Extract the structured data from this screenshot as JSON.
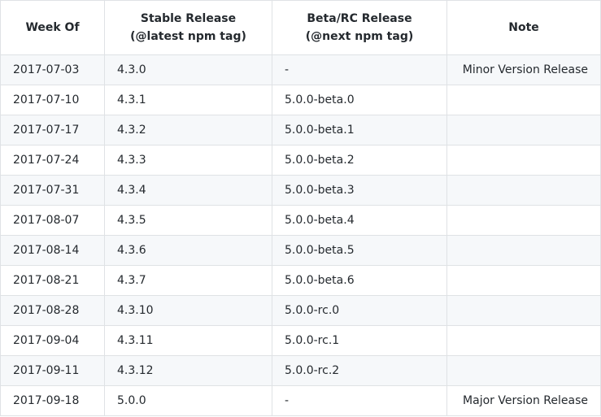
{
  "table": {
    "headers": [
      [
        "Week Of"
      ],
      [
        "Stable Release",
        "(@latest npm tag)"
      ],
      [
        "Beta/RC Release",
        "(@next npm tag)"
      ],
      [
        "Note"
      ]
    ],
    "rows": [
      [
        "2017-07-03",
        "4.3.0",
        "-",
        "Minor Version Release"
      ],
      [
        "2017-07-10",
        "4.3.1",
        "5.0.0-beta.0",
        ""
      ],
      [
        "2017-07-17",
        "4.3.2",
        "5.0.0-beta.1",
        ""
      ],
      [
        "2017-07-24",
        "4.3.3",
        "5.0.0-beta.2",
        ""
      ],
      [
        "2017-07-31",
        "4.3.4",
        "5.0.0-beta.3",
        ""
      ],
      [
        "2017-08-07",
        "4.3.5",
        "5.0.0-beta.4",
        ""
      ],
      [
        "2017-08-14",
        "4.3.6",
        "5.0.0-beta.5",
        ""
      ],
      [
        "2017-08-21",
        "4.3.7",
        "5.0.0-beta.6",
        ""
      ],
      [
        "2017-08-28",
        "4.3.10",
        "5.0.0-rc.0",
        ""
      ],
      [
        "2017-09-04",
        "4.3.11",
        "5.0.0-rc.1",
        ""
      ],
      [
        "2017-09-11",
        "4.3.12",
        "5.0.0-rc.2",
        ""
      ],
      [
        "2017-09-18",
        "5.0.0",
        "-",
        "Major Version Release"
      ]
    ]
  }
}
